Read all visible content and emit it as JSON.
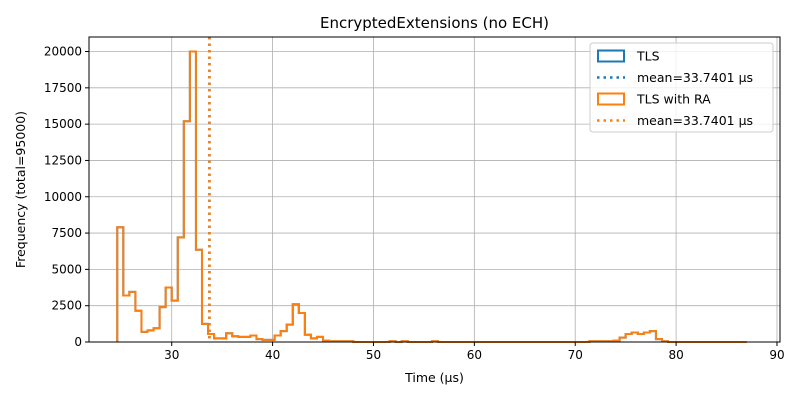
{
  "chart_data": {
    "type": "histogram-step",
    "title": "EncryptedExtensions (no ECH)",
    "xlabel": "Time (µs)",
    "ylabel": "Frequency (total=95000)",
    "xlim": [
      21.8,
      90.3
    ],
    "ylim": [
      0,
      21000
    ],
    "xticks": [
      30,
      40,
      50,
      60,
      70,
      80,
      90
    ],
    "yticks": [
      0,
      2500,
      5000,
      7500,
      10000,
      12500,
      15000,
      17500,
      20000
    ],
    "grid": true,
    "legend_position": "top-right",
    "colors": {
      "tls": "#1f77b4",
      "tls_ra": "#ff7f0e",
      "grid": "#b0b0b0"
    },
    "series": [
      {
        "name": "TLS",
        "color": "#1f77b4",
        "bin_edges": [
          24.6,
          25.2,
          25.8,
          26.4,
          27.0,
          27.6,
          28.2,
          28.8,
          29.4,
          30.0,
          30.6,
          31.2,
          31.8,
          32.4,
          33.0,
          33.6,
          34.2,
          34.8,
          35.4,
          36.0,
          36.6,
          37.2,
          37.8,
          38.4,
          39.0,
          39.6,
          40.2,
          40.8,
          41.4,
          42.0,
          42.6,
          43.2,
          43.8,
          44.4,
          45.0,
          45.6,
          46.2,
          46.8,
          47.4,
          48.0,
          48.6,
          49.2,
          49.8,
          50.4,
          51.0,
          51.6,
          52.2,
          52.8,
          53.4,
          54.0,
          54.6,
          55.2,
          55.8,
          56.4,
          57.0,
          57.6,
          58.2,
          58.8,
          59.4,
          60.0,
          60.6,
          61.2,
          61.8,
          62.4,
          63.0,
          63.6,
          64.2,
          64.8,
          65.4,
          66.0,
          66.6,
          67.2,
          67.8,
          68.4,
          69.0,
          69.6,
          70.2,
          70.8,
          71.4,
          72.0,
          72.6,
          73.2,
          73.8,
          74.4,
          75.0,
          75.6,
          76.2,
          76.8,
          77.4,
          78.0,
          78.6,
          79.2,
          79.8,
          80.4,
          81.0,
          81.6,
          82.2,
          82.8,
          83.4,
          84.0,
          84.6,
          85.2,
          85.8,
          86.4,
          87.0
        ],
        "counts": [
          7900,
          3200,
          3450,
          2150,
          700,
          800,
          950,
          2400,
          3750,
          2850,
          7200,
          15200,
          20000,
          6350,
          1250,
          550,
          250,
          250,
          600,
          400,
          350,
          350,
          450,
          200,
          150,
          150,
          450,
          750,
          1200,
          2600,
          2000,
          500,
          250,
          350,
          100,
          50,
          50,
          50,
          50,
          0,
          0,
          0,
          0,
          0,
          0,
          50,
          0,
          50,
          0,
          0,
          0,
          0,
          50,
          0,
          0,
          0,
          0,
          0,
          0,
          0,
          0,
          0,
          0,
          0,
          0,
          0,
          0,
          0,
          0,
          0,
          0,
          0,
          0,
          0,
          0,
          0,
          0,
          0,
          50,
          50,
          50,
          50,
          100,
          300,
          550,
          650,
          550,
          650,
          750,
          200,
          50,
          0,
          0,
          0,
          0,
          0,
          0,
          0,
          0,
          0,
          0,
          0,
          0,
          0
        ]
      },
      {
        "name": "TLS with RA",
        "color": "#ff7f0e",
        "bin_edges": [
          24.6,
          25.2,
          25.8,
          26.4,
          27.0,
          27.6,
          28.2,
          28.8,
          29.4,
          30.0,
          30.6,
          31.2,
          31.8,
          32.4,
          33.0,
          33.6,
          34.2,
          34.8,
          35.4,
          36.0,
          36.6,
          37.2,
          37.8,
          38.4,
          39.0,
          39.6,
          40.2,
          40.8,
          41.4,
          42.0,
          42.6,
          43.2,
          43.8,
          44.4,
          45.0,
          45.6,
          46.2,
          46.8,
          47.4,
          48.0,
          48.6,
          49.2,
          49.8,
          50.4,
          51.0,
          51.6,
          52.2,
          52.8,
          53.4,
          54.0,
          54.6,
          55.2,
          55.8,
          56.4,
          57.0,
          57.6,
          58.2,
          58.8,
          59.4,
          60.0,
          60.6,
          61.2,
          61.8,
          62.4,
          63.0,
          63.6,
          64.2,
          64.8,
          65.4,
          66.0,
          66.6,
          67.2,
          67.8,
          68.4,
          69.0,
          69.6,
          70.2,
          70.8,
          71.4,
          72.0,
          72.6,
          73.2,
          73.8,
          74.4,
          75.0,
          75.6,
          76.2,
          76.8,
          77.4,
          78.0,
          78.6,
          79.2,
          79.8,
          80.4,
          81.0,
          81.6,
          82.2,
          82.8,
          83.4,
          84.0,
          84.6,
          85.2,
          85.8,
          86.4,
          87.0
        ],
        "counts": [
          7900,
          3200,
          3450,
          2150,
          700,
          800,
          950,
          2400,
          3750,
          2850,
          7200,
          15200,
          20000,
          6350,
          1250,
          550,
          250,
          250,
          600,
          400,
          350,
          350,
          450,
          200,
          150,
          150,
          450,
          750,
          1200,
          2600,
          2000,
          500,
          250,
          350,
          100,
          50,
          50,
          50,
          50,
          0,
          0,
          0,
          0,
          0,
          0,
          50,
          0,
          50,
          0,
          0,
          0,
          0,
          50,
          0,
          0,
          0,
          0,
          0,
          0,
          0,
          0,
          0,
          0,
          0,
          0,
          0,
          0,
          0,
          0,
          0,
          0,
          0,
          0,
          0,
          0,
          0,
          0,
          0,
          50,
          50,
          50,
          50,
          100,
          300,
          550,
          650,
          550,
          650,
          750,
          200,
          50,
          0,
          0,
          0,
          0,
          0,
          0,
          0,
          0,
          0,
          0,
          0,
          0,
          0
        ]
      }
    ],
    "mean_lines": [
      {
        "label": "mean=33.7401 µs",
        "value": 33.7401,
        "color": "#1f77b4"
      },
      {
        "label": "mean=33.7401 µs",
        "value": 33.7401,
        "color": "#ff7f0e"
      }
    ],
    "legend": [
      {
        "label": "TLS",
        "kind": "patch",
        "color": "#1f77b4"
      },
      {
        "label": "mean=33.7401 µs",
        "kind": "dotted-line",
        "color": "#1f77b4"
      },
      {
        "label": "TLS with RA",
        "kind": "patch",
        "color": "#ff7f0e"
      },
      {
        "label": "mean=33.7401 µs",
        "kind": "dotted-line",
        "color": "#ff7f0e"
      }
    ]
  }
}
